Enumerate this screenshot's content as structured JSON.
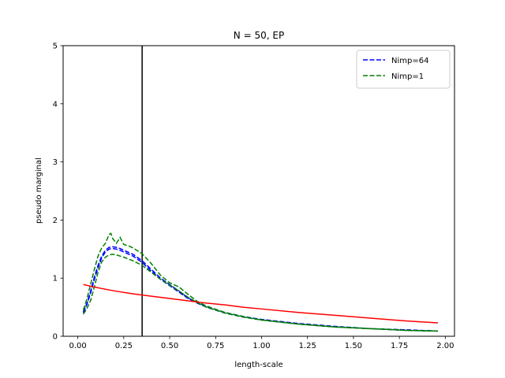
{
  "chart_data": {
    "type": "line",
    "title": "N = 50, EP",
    "xlabel": "length-scale",
    "ylabel": "pseudo marginal",
    "xlim": [
      -0.08,
      2.05
    ],
    "ylim": [
      0,
      5
    ],
    "xticks": [
      0.0,
      0.25,
      0.5,
      0.75,
      1.0,
      1.25,
      1.5,
      1.75,
      2.0
    ],
    "xtick_labels": [
      "0.00",
      "0.25",
      "0.50",
      "0.75",
      "1.00",
      "1.25",
      "1.50",
      "1.75",
      "2.00"
    ],
    "yticks": [
      0,
      1,
      2,
      3,
      4,
      5
    ],
    "ytick_labels": [
      "0",
      "1",
      "2",
      "3",
      "4",
      "5"
    ],
    "grid": false,
    "legend_position": "top-right",
    "vline": {
      "x": 0.35,
      "color": "#000000"
    },
    "series": [
      {
        "name": "Nimp=64",
        "in_legend": true,
        "color": "#0000ff",
        "style": "dashed",
        "x": [
          0.03,
          0.05,
          0.07,
          0.09,
          0.11,
          0.13,
          0.15,
          0.17,
          0.19,
          0.21,
          0.23,
          0.25,
          0.3,
          0.35,
          0.4,
          0.45,
          0.5,
          0.55,
          0.6,
          0.65,
          0.7,
          0.8,
          0.9,
          1.0,
          1.2,
          1.4,
          1.6,
          1.8,
          1.96
        ],
        "y": [
          0.4,
          0.55,
          0.75,
          0.98,
          1.18,
          1.35,
          1.45,
          1.5,
          1.51,
          1.5,
          1.48,
          1.45,
          1.38,
          1.27,
          1.12,
          0.98,
          0.87,
          0.76,
          0.65,
          0.57,
          0.5,
          0.4,
          0.33,
          0.28,
          0.21,
          0.16,
          0.13,
          0.1,
          0.09
        ]
      },
      {
        "name": "",
        "in_legend": false,
        "color": "#0000ff",
        "style": "dashed",
        "x": [
          0.03,
          0.05,
          0.07,
          0.09,
          0.11,
          0.13,
          0.15,
          0.17,
          0.19,
          0.21,
          0.23,
          0.25,
          0.3,
          0.35,
          0.4,
          0.45,
          0.5,
          0.55,
          0.6,
          0.65,
          0.7,
          0.8,
          0.9,
          1.0,
          1.2,
          1.4,
          1.6,
          1.8,
          1.96
        ],
        "y": [
          0.42,
          0.57,
          0.78,
          1.02,
          1.22,
          1.38,
          1.48,
          1.53,
          1.54,
          1.53,
          1.51,
          1.48,
          1.41,
          1.3,
          1.15,
          1.0,
          0.89,
          0.78,
          0.66,
          0.58,
          0.51,
          0.41,
          0.34,
          0.29,
          0.22,
          0.17,
          0.13,
          0.11,
          0.09
        ]
      },
      {
        "name": "Nimp=1",
        "in_legend": true,
        "color": "#008000",
        "style": "dashed",
        "x": [
          0.03,
          0.05,
          0.07,
          0.09,
          0.11,
          0.13,
          0.15,
          0.17,
          0.18,
          0.19,
          0.21,
          0.23,
          0.25,
          0.28,
          0.3,
          0.35,
          0.4,
          0.45,
          0.5,
          0.55,
          0.6,
          0.65,
          0.7,
          0.8,
          0.9,
          1.0,
          1.2,
          1.4,
          1.6,
          1.8,
          1.96
        ],
        "y": [
          0.45,
          0.65,
          0.9,
          1.15,
          1.38,
          1.52,
          1.6,
          1.75,
          1.77,
          1.68,
          1.6,
          1.7,
          1.58,
          1.55,
          1.52,
          1.42,
          1.25,
          1.05,
          0.92,
          0.85,
          0.72,
          0.6,
          0.52,
          0.41,
          0.34,
          0.28,
          0.21,
          0.16,
          0.13,
          0.1,
          0.09
        ]
      },
      {
        "name": "",
        "in_legend": false,
        "color": "#008000",
        "style": "dashed",
        "x": [
          0.03,
          0.05,
          0.07,
          0.09,
          0.11,
          0.13,
          0.15,
          0.17,
          0.19,
          0.21,
          0.23,
          0.25,
          0.3,
          0.35,
          0.4,
          0.45,
          0.5,
          0.55,
          0.6,
          0.65,
          0.7,
          0.8,
          0.9,
          1.0,
          1.2,
          1.4,
          1.6,
          1.8,
          1.96
        ],
        "y": [
          0.38,
          0.48,
          0.62,
          0.85,
          1.1,
          1.28,
          1.36,
          1.4,
          1.41,
          1.4,
          1.38,
          1.36,
          1.3,
          1.22,
          1.1,
          0.98,
          0.88,
          0.78,
          0.67,
          0.58,
          0.5,
          0.4,
          0.33,
          0.28,
          0.21,
          0.16,
          0.13,
          0.1,
          0.09
        ]
      },
      {
        "name": "",
        "in_legend": false,
        "color": "#ff0000",
        "style": "solid",
        "x": [
          0.03,
          0.1,
          0.2,
          0.3,
          0.4,
          0.5,
          0.6,
          0.7,
          0.8,
          0.9,
          1.0,
          1.2,
          1.4,
          1.6,
          1.8,
          1.96
        ],
        "y": [
          0.89,
          0.84,
          0.78,
          0.73,
          0.69,
          0.65,
          0.61,
          0.57,
          0.54,
          0.5,
          0.47,
          0.41,
          0.36,
          0.31,
          0.26,
          0.23
        ]
      }
    ]
  }
}
